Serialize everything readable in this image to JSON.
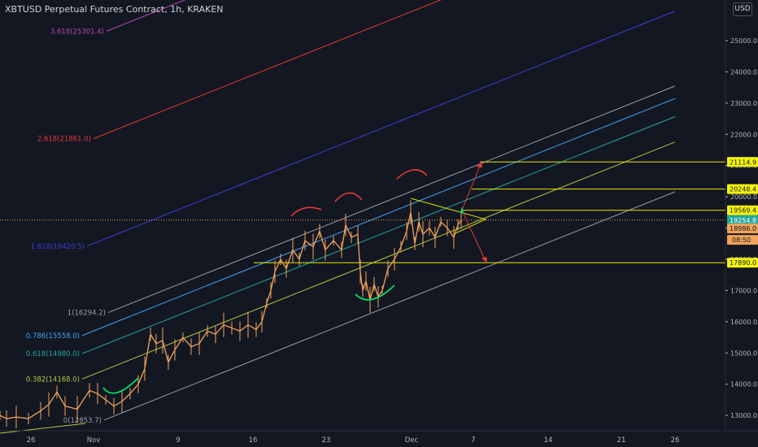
{
  "header": {
    "title": "XBTUSD Perpetual Futures Contract, 1h, KRAKEN",
    "currency_button": "USD"
  },
  "colors": {
    "background": "#131722",
    "axis_text": "#b2b5be",
    "candle": "#f0a35a",
    "fib_0": "#9a9da8",
    "fib_0382": "#b5c942",
    "fib_0618": "#26a69a",
    "fib_0786": "#42a5f5",
    "fib_1": "#9a9da8",
    "fib_1618": "#3f3fd6",
    "fib_2618": "#e53935",
    "fib_3618": "#b04ab0",
    "level_line": "#e6e600",
    "arc_red": "#e53935",
    "arc_green": "#00e676",
    "triangle": "#e6e600",
    "arrow": "#e53935"
  },
  "chart_data": {
    "type": "line",
    "title": "XBTUSD Perpetual Futures Contract, 1h, KRAKEN",
    "y_axis": {
      "label": "USD",
      "ylim": [
        11990,
        26300
      ],
      "ticks": [
        12000.0,
        13000.0,
        14000.0,
        15000.0,
        16000.0,
        17000.0,
        18000.0,
        19000.0,
        20000.0,
        21000.0,
        22000.0,
        23000.0,
        24000.0,
        25000.0
      ]
    },
    "x_axis": {
      "ticks": [
        "26",
        "Nov",
        "9",
        "16",
        "23",
        "Dec",
        "7",
        "14",
        "21",
        "26"
      ]
    },
    "price_series": {
      "name": "XBTUSD",
      "points": [
        [
          0,
          13000
        ],
        [
          8,
          12900
        ],
        [
          20,
          12950
        ],
        [
          35,
          12900
        ],
        [
          50,
          13150
        ],
        [
          60,
          13350
        ],
        [
          70,
          13750
        ],
        [
          80,
          13300
        ],
        [
          95,
          13200
        ],
        [
          110,
          13800
        ],
        [
          120,
          13700
        ],
        [
          130,
          13500
        ],
        [
          140,
          13300
        ],
        [
          150,
          13450
        ],
        [
          160,
          13700
        ],
        [
          170,
          14000
        ],
        [
          178,
          14500
        ],
        [
          185,
          15600
        ],
        [
          192,
          15300
        ],
        [
          200,
          15400
        ],
        [
          207,
          14700
        ],
        [
          215,
          15100
        ],
        [
          225,
          15500
        ],
        [
          235,
          15200
        ],
        [
          245,
          15300
        ],
        [
          255,
          15700
        ],
        [
          265,
          15600
        ],
        [
          275,
          15900
        ],
        [
          285,
          15800
        ],
        [
          295,
          15700
        ],
        [
          305,
          15900
        ],
        [
          315,
          15750
        ],
        [
          322,
          16000
        ],
        [
          328,
          16600
        ],
        [
          333,
          17000
        ],
        [
          338,
          17600
        ],
        [
          345,
          18000
        ],
        [
          352,
          17700
        ],
        [
          360,
          18300
        ],
        [
          368,
          18000
        ],
        [
          375,
          18600
        ],
        [
          385,
          18400
        ],
        [
          393,
          18900
        ],
        [
          400,
          18300
        ],
        [
          410,
          18600
        ],
        [
          420,
          18300
        ],
        [
          425,
          19100
        ],
        [
          432,
          18700
        ],
        [
          440,
          18800
        ],
        [
          443,
          17600
        ],
        [
          446,
          17000
        ],
        [
          450,
          17300
        ],
        [
          455,
          16700
        ],
        [
          460,
          17200
        ],
        [
          465,
          16800
        ],
        [
          470,
          17000
        ],
        [
          477,
          17700
        ],
        [
          485,
          18000
        ],
        [
          493,
          18400
        ],
        [
          500,
          18900
        ],
        [
          505,
          19500
        ],
        [
          510,
          18500
        ],
        [
          515,
          19200
        ],
        [
          520,
          18800
        ],
        [
          528,
          19000
        ],
        [
          535,
          18700
        ],
        [
          542,
          19200
        ],
        [
          550,
          19000
        ],
        [
          558,
          18700
        ],
        [
          563,
          19100
        ],
        [
          567,
          19250
        ]
      ]
    },
    "fib_channel": [
      {
        "level": "0",
        "value": 12853.7,
        "label": "0(12853.7)"
      },
      {
        "level": "0.382",
        "value": 14168.0,
        "label": "0.382(14168.0)"
      },
      {
        "level": "0.618",
        "value": 14980.0,
        "label": "0.618(14980.0)"
      },
      {
        "level": "0.786",
        "value": 15558.0,
        "label": "0.786(15558.0)"
      },
      {
        "level": "1",
        "value": 16294.2,
        "label": "1(16294.2)"
      },
      {
        "level": "1.618",
        "value": 18420.5,
        "label": "1.618(18420.5)"
      },
      {
        "level": "2.618",
        "value": 21861.0,
        "label": "2.618(21861.0)"
      },
      {
        "level": "3.618",
        "value": 25301.4,
        "label": "3.618(25301.4)"
      }
    ],
    "price_levels": [
      {
        "value": 21114.9,
        "label": "21114.9",
        "style": "yellow"
      },
      {
        "value": 20248.4,
        "label": "20248.4",
        "style": "yellow"
      },
      {
        "value": 19569.4,
        "label": "19569.4",
        "style": "yellow"
      },
      {
        "value": 19254.8,
        "label": "19254.8",
        "style": "green"
      },
      {
        "value": 18986.0,
        "label": "18986.0",
        "style": "orange"
      },
      {
        "value": 17890.0,
        "label": "17890.0",
        "style": "yellow"
      }
    ],
    "countdown_label": "08:50",
    "grid": false
  }
}
